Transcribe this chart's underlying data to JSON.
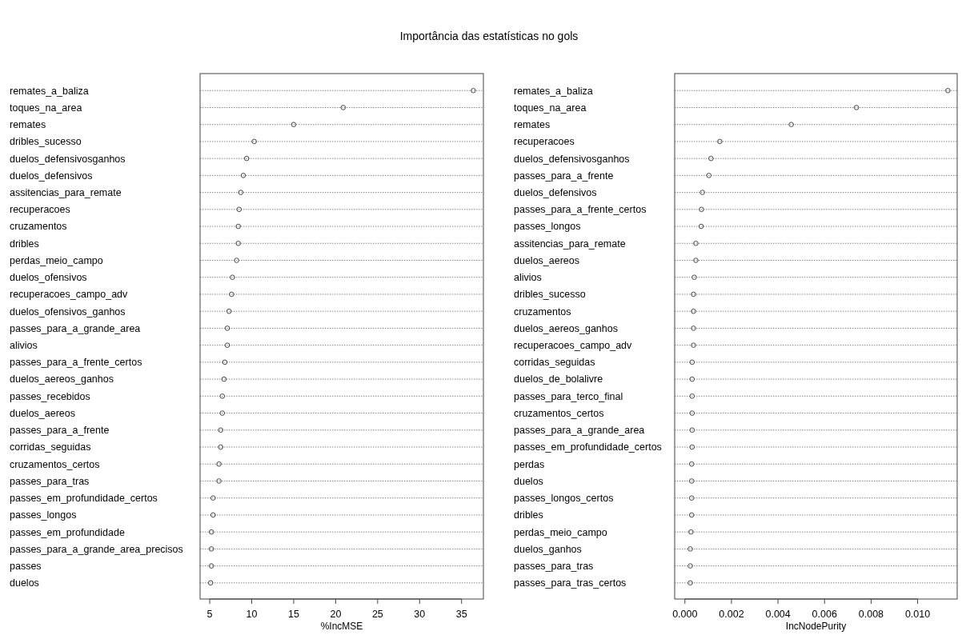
{
  "chart_data": [
    {
      "type": "scatter",
      "title": "Importância das estatísticas no gols",
      "orientation": "horizontal",
      "xlabel": "%IncMSE",
      "grid": "y",
      "marker": "circle",
      "color": "#333333",
      "categories": [
        "remates_a_baliza",
        "toques_na_area",
        "remates",
        "dribles_sucesso",
        "duelos_defensivosganhos",
        "duelos_defensivos",
        "assitencias_para_remate",
        "recuperacoes",
        "cruzamentos",
        "dribles",
        "perdas_meio_campo",
        "duelos_ofensivos",
        "recuperacoes_campo_adv",
        "duelos_ofensivos_ganhos",
        "passes_para_a_grande_area",
        "alivios",
        "passes_para_a_frente_certos",
        "duelos_aereos_ganhos",
        "passes_recebidos",
        "duelos_aereos",
        "passes_para_a_frente",
        "corridas_seguidas",
        "cruzamentos_certos",
        "passes_para_tras",
        "passes_em_profundidade_certos",
        "passes_longos",
        "passes_em_profundidade",
        "passes_para_a_grande_area_precisos",
        "passes",
        "duelos"
      ],
      "values": [
        36.4,
        20.9,
        15.0,
        10.3,
        9.4,
        9.0,
        8.7,
        8.5,
        8.4,
        8.4,
        8.2,
        7.7,
        7.6,
        7.3,
        7.1,
        7.1,
        6.8,
        6.7,
        6.5,
        6.5,
        6.3,
        6.3,
        6.1,
        6.1,
        5.4,
        5.4,
        5.2,
        5.2,
        5.2,
        5.1
      ],
      "xlim": [
        3.85,
        37.6
      ],
      "xticks": [
        5,
        10,
        15,
        20,
        25,
        30,
        35
      ]
    },
    {
      "type": "scatter",
      "orientation": "horizontal",
      "xlabel": "IncNodePurity",
      "grid": "y",
      "marker": "circle",
      "color": "#333333",
      "categories": [
        "remates_a_baliza",
        "toques_na_area",
        "remates",
        "recuperacoes",
        "duelos_defensivosganhos",
        "passes_para_a_frente",
        "duelos_defensivos",
        "passes_para_a_frente_certos",
        "passes_longos",
        "assitencias_para_remate",
        "duelos_aereos",
        "alivios",
        "dribles_sucesso",
        "cruzamentos",
        "duelos_aereos_ganhos",
        "recuperacoes_campo_adv",
        "corridas_seguidas",
        "duelos_de_bolalivre",
        "passes_para_terco_final",
        "cruzamentos_certos",
        "passes_para_a_grande_area",
        "passes_em_profundidade_certos",
        "perdas",
        "duelos",
        "passes_longos_certos",
        "dribles",
        "perdas_meio_campo",
        "duelos_ganhos",
        "passes_para_tras",
        "passes_para_tras_certos"
      ],
      "values": [
        0.0113,
        0.00737,
        0.00457,
        0.0015,
        0.00112,
        0.00103,
        0.00075,
        0.00071,
        0.0007,
        0.00047,
        0.00047,
        0.0004,
        0.00037,
        0.00037,
        0.00037,
        0.00037,
        0.00031,
        0.00031,
        0.00031,
        0.00031,
        0.00031,
        0.00031,
        0.00029,
        0.00029,
        0.00029,
        0.00029,
        0.00026,
        0.00023,
        0.00023,
        0.00023
      ],
      "xlim": [
        -0.00044,
        0.0117
      ],
      "xticks": [
        {
          "value": 0,
          "label": "0.000"
        },
        {
          "value": 0.002,
          "label": "0.002"
        },
        {
          "value": 0.004,
          "label": "0.004"
        },
        {
          "value": 0.006,
          "label": "0.006"
        },
        {
          "value": 0.008,
          "label": "0.008"
        },
        {
          "value": 0.01,
          "label": "0.010"
        }
      ]
    }
  ]
}
